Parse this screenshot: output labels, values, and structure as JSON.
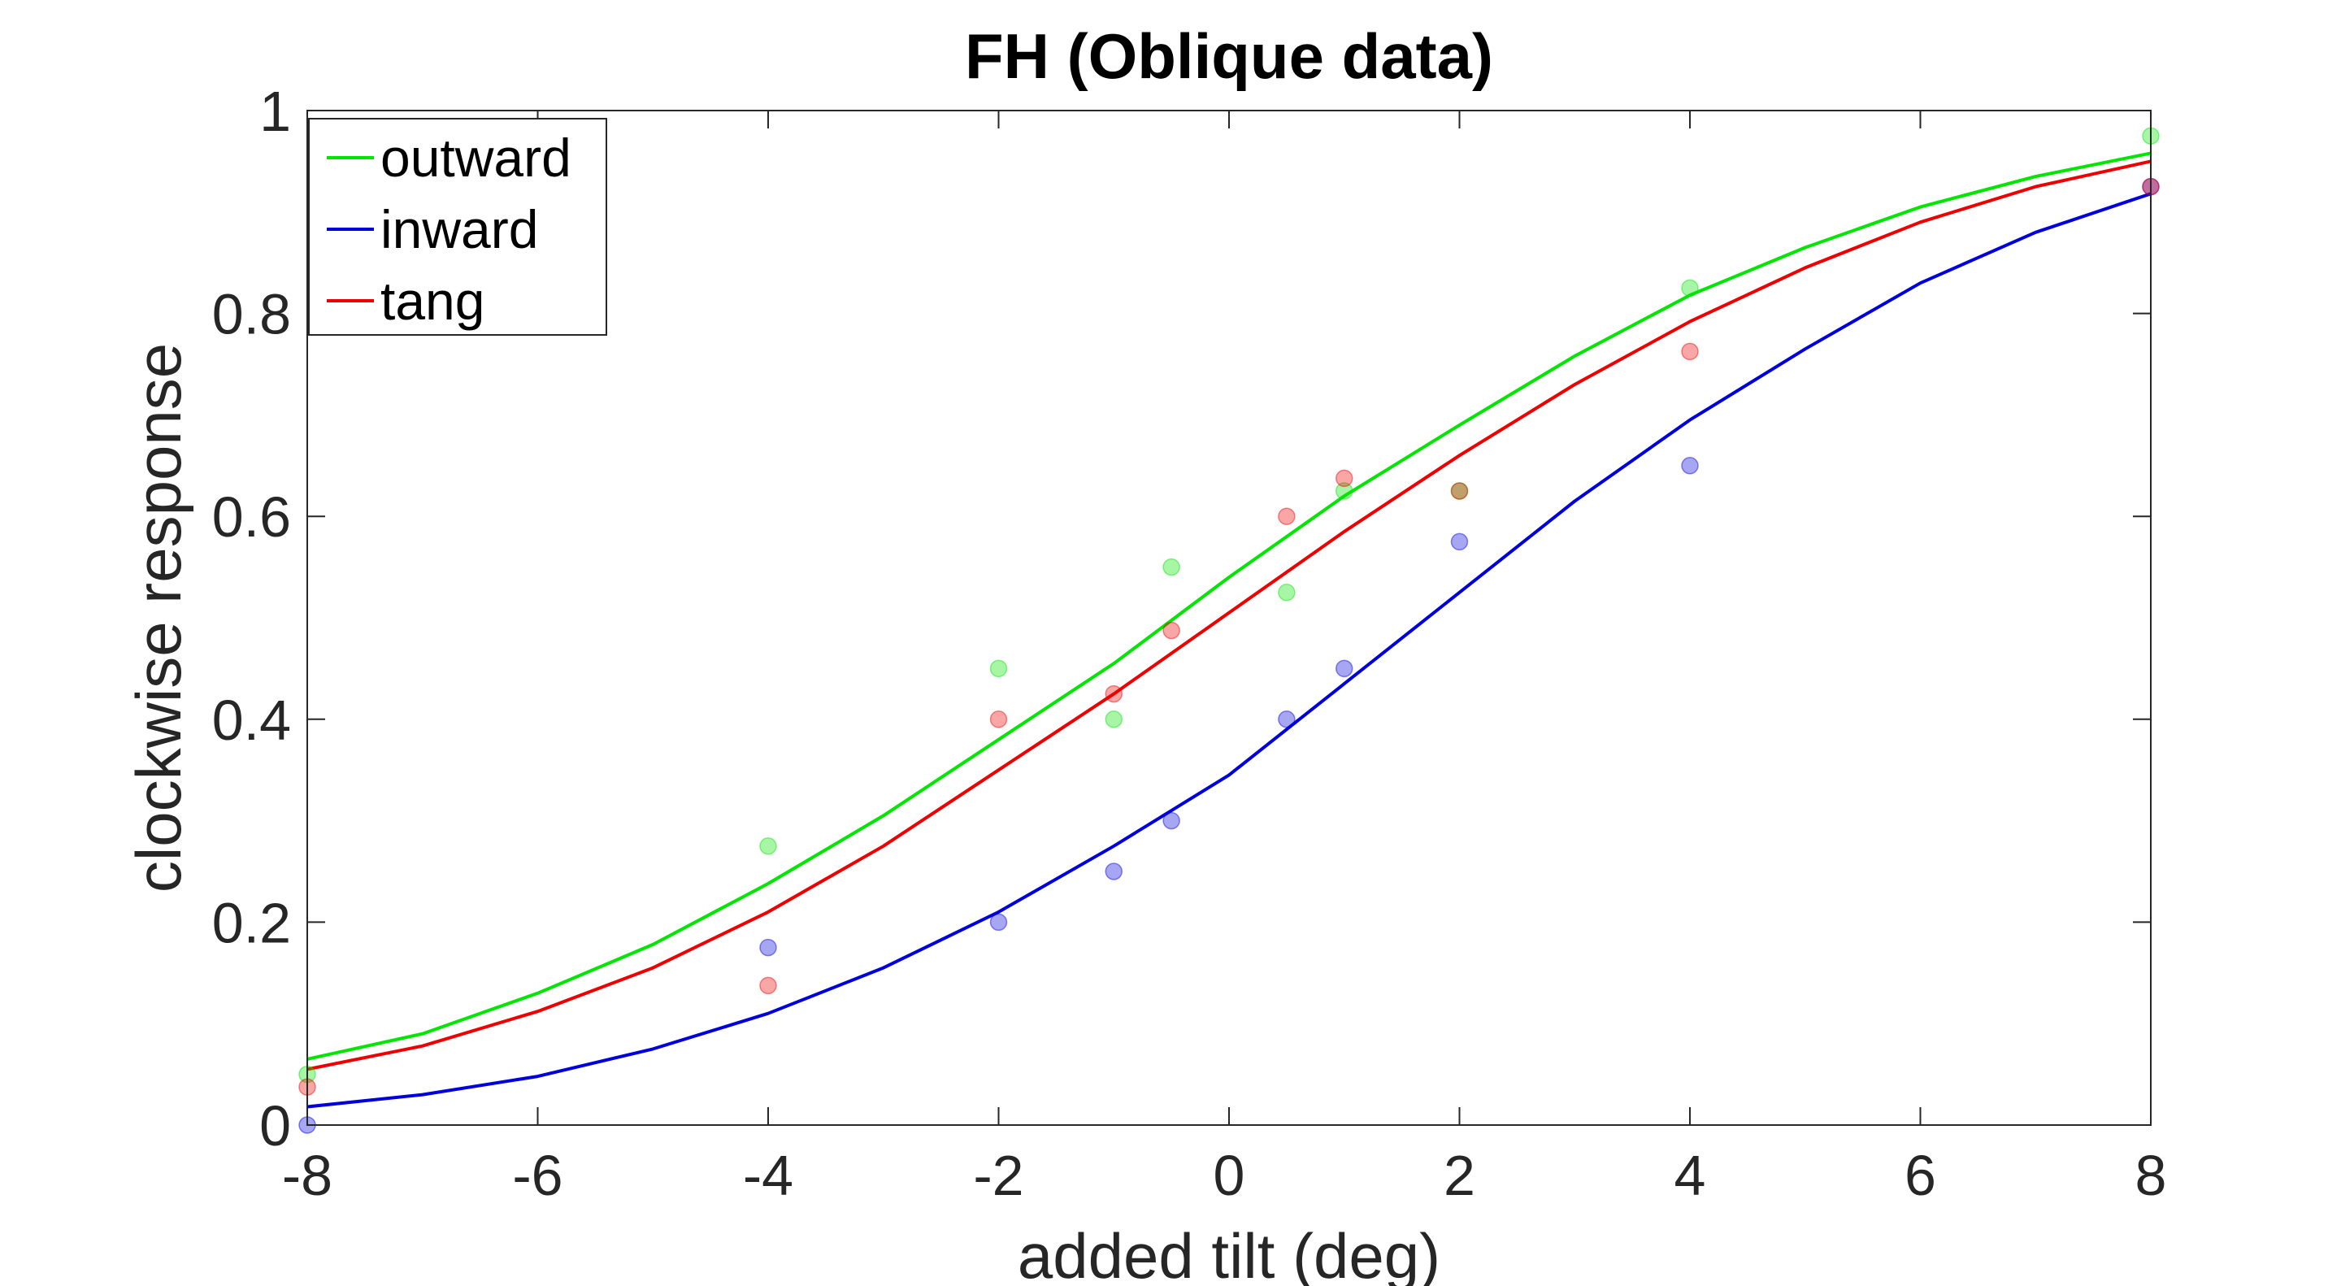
{
  "chart_data": {
    "type": "scatter",
    "title": "FH (Oblique data)",
    "xlabel": "added tilt (deg)",
    "ylabel": "clockwise response",
    "xlim": [
      -8,
      8
    ],
    "ylim": [
      0,
      1
    ],
    "xticks": [
      -8,
      -6,
      -4,
      -2,
      0,
      2,
      4,
      6,
      8
    ],
    "xtick_labels": [
      "-8",
      "-6",
      "-4",
      "-2",
      "0",
      "2",
      "4",
      "6",
      "8"
    ],
    "yticks": [
      0,
      0.2,
      0.4,
      0.6,
      0.8,
      1
    ],
    "ytick_labels": [
      "0",
      "0.2",
      "0.4",
      "0.6",
      "0.8",
      "1"
    ],
    "grid": false,
    "legend_position": "top-left",
    "series": [
      {
        "name": "outward",
        "color": "#00e600",
        "points": [
          [
            -8,
            0.05
          ],
          [
            -4,
            0.275
          ],
          [
            -2,
            0.45
          ],
          [
            -1,
            0.4
          ],
          [
            -0.5,
            0.55
          ],
          [
            0.5,
            0.525
          ],
          [
            1,
            0.625
          ],
          [
            2,
            0.625
          ],
          [
            4,
            0.825
          ],
          [
            8,
            0.975
          ]
        ],
        "fit_curve": [
          [
            -8,
            0.065
          ],
          [
            -7,
            0.09
          ],
          [
            -6,
            0.13
          ],
          [
            -5,
            0.178
          ],
          [
            -4,
            0.238
          ],
          [
            -3,
            0.305
          ],
          [
            -2,
            0.38
          ],
          [
            -1,
            0.455
          ],
          [
            0,
            0.54
          ],
          [
            1,
            0.62
          ],
          [
            2,
            0.69
          ],
          [
            3,
            0.758
          ],
          [
            4,
            0.818
          ],
          [
            5,
            0.865
          ],
          [
            6,
            0.905
          ],
          [
            7,
            0.935
          ],
          [
            8,
            0.958
          ]
        ]
      },
      {
        "name": "inward",
        "color": "#0000dd",
        "points": [
          [
            -8,
            0.0
          ],
          [
            -4,
            0.175
          ],
          [
            -2,
            0.2
          ],
          [
            -1,
            0.25
          ],
          [
            -0.5,
            0.3
          ],
          [
            0.5,
            0.4
          ],
          [
            1,
            0.45
          ],
          [
            2,
            0.575
          ],
          [
            4,
            0.65
          ],
          [
            8,
            0.925
          ]
        ],
        "fit_curve": [
          [
            -8,
            0.018
          ],
          [
            -7,
            0.03
          ],
          [
            -6,
            0.048
          ],
          [
            -5,
            0.075
          ],
          [
            -4,
            0.11
          ],
          [
            -3,
            0.155
          ],
          [
            -2,
            0.21
          ],
          [
            -1,
            0.275
          ],
          [
            0,
            0.345
          ],
          [
            1,
            0.435
          ],
          [
            2,
            0.525
          ],
          [
            3,
            0.615
          ],
          [
            4,
            0.695
          ],
          [
            5,
            0.765
          ],
          [
            6,
            0.83
          ],
          [
            7,
            0.88
          ],
          [
            8,
            0.918
          ]
        ]
      },
      {
        "name": "tang",
        "color": "#ee0000",
        "points": [
          [
            -8,
            0.0375
          ],
          [
            -4,
            0.1375
          ],
          [
            -2,
            0.4
          ],
          [
            -1,
            0.425
          ],
          [
            -0.5,
            0.4875
          ],
          [
            0.5,
            0.6
          ],
          [
            1,
            0.6375
          ],
          [
            2,
            0.625
          ],
          [
            4,
            0.7625
          ],
          [
            8,
            0.925
          ]
        ],
        "fit_curve": [
          [
            -8,
            0.055
          ],
          [
            -7,
            0.078
          ],
          [
            -6,
            0.112
          ],
          [
            -5,
            0.155
          ],
          [
            -4,
            0.21
          ],
          [
            -3,
            0.275
          ],
          [
            -2,
            0.35
          ],
          [
            -1,
            0.425
          ],
          [
            0,
            0.505
          ],
          [
            1,
            0.585
          ],
          [
            2,
            0.66
          ],
          [
            3,
            0.73
          ],
          [
            4,
            0.792
          ],
          [
            5,
            0.845
          ],
          [
            6,
            0.89
          ],
          [
            7,
            0.925
          ],
          [
            8,
            0.95
          ]
        ]
      }
    ]
  }
}
